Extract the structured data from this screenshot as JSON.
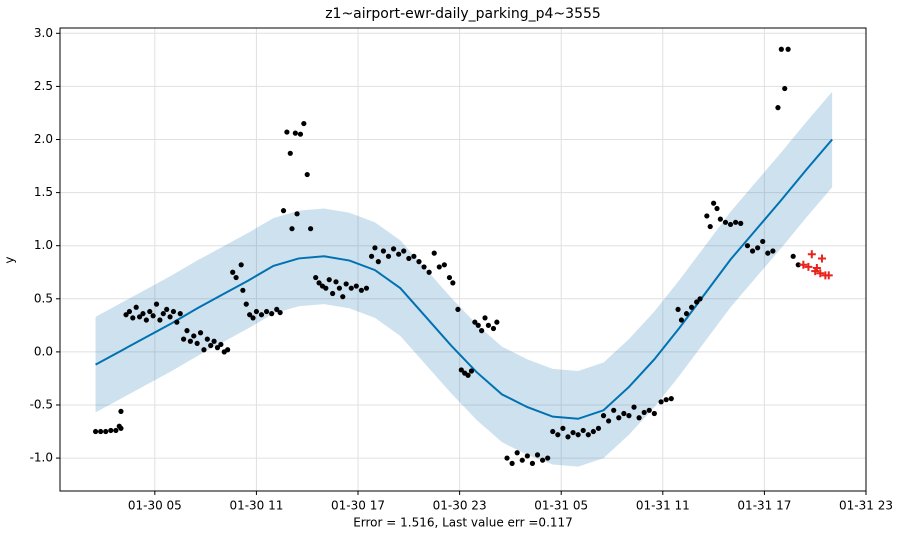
{
  "chart_data": {
    "type": "forecast",
    "title": "z1~airport-ewr-daily_parking_p4~3555",
    "x_label": "Error = 1.516, Last value err =0.117",
    "y_label": "y",
    "xlim": [
      -0.6,
      47.0
    ],
    "ylim": [
      -1.31,
      3.05
    ],
    "xticks": [
      {
        "value": 5,
        "label": "01-30 05"
      },
      {
        "value": 11,
        "label": "01-30 11"
      },
      {
        "value": 17,
        "label": "01-30 17"
      },
      {
        "value": 23,
        "label": "01-30 23"
      },
      {
        "value": 29,
        "label": "01-31 05"
      },
      {
        "value": 35,
        "label": "01-31 11"
      },
      {
        "value": 41,
        "label": "01-31 17"
      },
      {
        "value": 47,
        "label": "01-31 23"
      }
    ],
    "yticks": [
      {
        "value": -1,
        "label": "-1.0"
      },
      -0.5,
      {
        "value": 0,
        "label": "0.0"
      },
      0.5,
      {
        "value": 1,
        "label": "1.0"
      },
      1.5,
      {
        "value": 2,
        "label": "2.0"
      },
      2.5,
      {
        "value": 3,
        "label": "3.0"
      }
    ],
    "grid": true,
    "series": [
      {
        "type": "line",
        "color": "#0072b2",
        "band_color": "#1f77b4",
        "x": [
          1.5,
          3,
          4.5,
          6,
          7.5,
          9,
          10.5,
          12,
          13.5,
          15,
          16.5,
          18,
          19.5,
          21,
          22.5,
          24,
          25.5,
          27,
          28.5,
          30,
          31.5,
          33,
          34.5,
          36,
          37.5,
          39,
          40.5,
          42,
          43.5,
          45
        ],
        "values": [
          -0.12,
          0.01,
          0.14,
          0.27,
          0.41,
          0.54,
          0.67,
          0.81,
          0.88,
          0.9,
          0.86,
          0.77,
          0.6,
          0.33,
          0.06,
          -0.19,
          -0.4,
          -0.52,
          -0.61,
          -0.63,
          -0.55,
          -0.33,
          -0.07,
          0.23,
          0.55,
          0.87,
          1.15,
          1.43,
          1.72,
          2.0
        ],
        "lower": [
          -0.57,
          -0.44,
          -0.31,
          -0.18,
          -0.04,
          0.09,
          0.22,
          0.36,
          0.43,
          0.45,
          0.41,
          0.32,
          0.15,
          -0.12,
          -0.39,
          -0.64,
          -0.85,
          -0.97,
          -1.06,
          -1.08,
          -1.0,
          -0.78,
          -0.52,
          -0.22,
          0.1,
          0.42,
          0.7,
          0.98,
          1.27,
          1.55
        ],
        "upper": [
          0.33,
          0.46,
          0.59,
          0.72,
          0.86,
          0.99,
          1.12,
          1.26,
          1.33,
          1.35,
          1.31,
          1.22,
          1.05,
          0.78,
          0.51,
          0.26,
          0.05,
          -0.07,
          -0.16,
          -0.18,
          -0.1,
          0.12,
          0.38,
          0.68,
          1.0,
          1.32,
          1.6,
          1.88,
          2.17,
          2.45
        ]
      },
      {
        "type": "scatter",
        "marker": "circle",
        "color": "#000000",
        "x": [
          1.5,
          1.8,
          2.1,
          2.4,
          2.7,
          2.9,
          3.0,
          3.0,
          3.3,
          3.5,
          3.7,
          3.9,
          4.1,
          4.3,
          4.5,
          4.7,
          4.9,
          5.1,
          5.3,
          5.5,
          5.7,
          5.9,
          6.1,
          6.3,
          6.5,
          6.7,
          6.9,
          7.1,
          7.3,
          7.5,
          7.7,
          7.9,
          8.1,
          8.3,
          8.5,
          8.7,
          8.9,
          9.1,
          9.3,
          9.6,
          9.8,
          10.1,
          10.2,
          10.4,
          10.6,
          10.8,
          11.0,
          11.3,
          11.6,
          11.9,
          12.2,
          12.4,
          12.6,
          12.8,
          13.0,
          13.1,
          13.3,
          13.4,
          13.6,
          13.8,
          14.0,
          14.2,
          14.5,
          14.7,
          14.9,
          15.1,
          15.3,
          15.5,
          15.7,
          15.9,
          16.1,
          16.3,
          16.6,
          16.9,
          17.2,
          17.5,
          17.8,
          18.0,
          18.2,
          18.5,
          18.8,
          19.1,
          19.4,
          19.7,
          20.0,
          20.3,
          20.6,
          20.9,
          21.2,
          21.5,
          21.8,
          22.1,
          22.4,
          22.6,
          22.9,
          23.1,
          23.3,
          23.5,
          23.7,
          23.9,
          24.1,
          24.3,
          24.5,
          24.7,
          25.0,
          25.2,
          25.8,
          26.1,
          26.4,
          26.7,
          27.0,
          27.3,
          27.6,
          27.9,
          28.2,
          28.5,
          28.8,
          29.1,
          29.4,
          29.7,
          30.0,
          30.3,
          30.6,
          30.9,
          31.2,
          31.5,
          31.8,
          32.1,
          32.4,
          32.7,
          33.0,
          33.3,
          33.6,
          33.9,
          34.2,
          34.5,
          34.9,
          35.2,
          35.5,
          35.9,
          36.1,
          36.4,
          36.7,
          37.0,
          37.2,
          37.6,
          37.8,
          38.0,
          38.2,
          38.4,
          38.7,
          39.0,
          39.3,
          39.6,
          40.0,
          40.3,
          40.6,
          40.9,
          41.2,
          41.5,
          41.8,
          42.0,
          42.2,
          42.4,
          42.7,
          43.0
        ],
        "values": [
          -0.75,
          -0.75,
          -0.75,
          -0.74,
          -0.74,
          -0.7,
          -0.56,
          -0.72,
          0.35,
          0.38,
          0.32,
          0.42,
          0.33,
          0.36,
          0.3,
          0.38,
          0.34,
          0.45,
          0.3,
          0.36,
          0.4,
          0.33,
          0.38,
          0.28,
          0.36,
          0.12,
          0.2,
          0.1,
          0.15,
          0.08,
          0.18,
          0.02,
          0.12,
          0.06,
          0.1,
          0.04,
          0.07,
          0.0,
          0.02,
          0.75,
          0.7,
          0.82,
          0.58,
          0.45,
          0.35,
          0.32,
          0.38,
          0.35,
          0.38,
          0.36,
          0.4,
          0.37,
          1.33,
          2.07,
          1.87,
          1.16,
          2.06,
          1.3,
          2.05,
          2.15,
          1.67,
          1.16,
          0.7,
          0.65,
          0.62,
          0.6,
          0.68,
          0.55,
          0.66,
          0.6,
          0.52,
          0.64,
          0.6,
          0.62,
          0.58,
          0.6,
          0.9,
          0.98,
          0.85,
          0.95,
          0.9,
          0.97,
          0.92,
          0.95,
          0.88,
          0.9,
          0.85,
          0.8,
          0.75,
          0.93,
          0.8,
          0.82,
          0.7,
          0.65,
          0.4,
          -0.17,
          -0.2,
          -0.22,
          -0.18,
          0.28,
          0.25,
          0.2,
          0.32,
          0.25,
          0.22,
          0.28,
          -1.0,
          -1.05,
          -0.95,
          -1.02,
          -0.98,
          -1.05,
          -0.97,
          -1.02,
          -1.0,
          -0.75,
          -0.78,
          -0.72,
          -0.8,
          -0.76,
          -0.78,
          -0.74,
          -0.78,
          -0.75,
          -0.72,
          -0.6,
          -0.65,
          -0.55,
          -0.62,
          -0.58,
          -0.6,
          -0.52,
          -0.62,
          -0.57,
          -0.55,
          -0.58,
          -0.47,
          -0.45,
          -0.44,
          0.4,
          0.3,
          0.36,
          0.42,
          0.47,
          0.5,
          1.28,
          1.18,
          1.4,
          1.35,
          1.25,
          1.22,
          1.2,
          1.22,
          1.21,
          1.0,
          0.95,
          0.98,
          1.04,
          0.93,
          0.95,
          2.3,
          2.85,
          2.48,
          2.85,
          0.9,
          0.82
        ]
      },
      {
        "type": "scatter",
        "marker": "plus",
        "color": "#e8241c",
        "x": [
          43.3,
          43.6,
          43.8,
          44.0,
          44.1,
          44.3,
          44.4,
          44.6,
          44.8
        ],
        "values": [
          0.82,
          0.8,
          0.92,
          0.76,
          0.79,
          0.74,
          0.88,
          0.72,
          0.72
        ]
      }
    ]
  }
}
